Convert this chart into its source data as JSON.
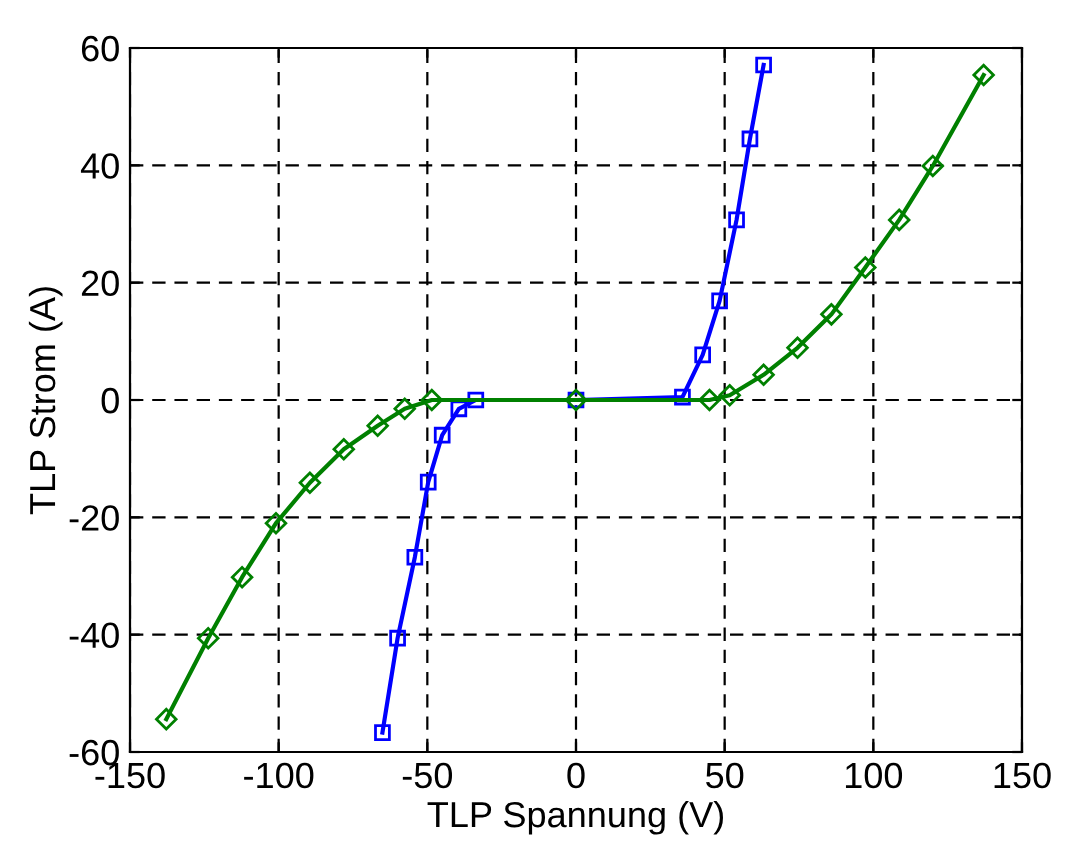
{
  "chart_data": {
    "type": "line",
    "xlabel": "TLP Spannung (V)",
    "ylabel": "TLP Strom (A)",
    "xlim": [
      -150,
      150
    ],
    "ylim": [
      -60,
      60
    ],
    "xticks": [
      -150,
      -100,
      -50,
      0,
      50,
      100,
      150
    ],
    "yticks": [
      -60,
      -40,
      -20,
      0,
      20,
      40,
      60
    ],
    "grid": true,
    "line_style": "solid",
    "series": [
      {
        "color": "#0000ff",
        "marker": "square",
        "x": [
          -65.1,
          -60,
          -54.2,
          -49.7,
          -45,
          -39.4,
          -33.7,
          0,
          35.8,
          42.6,
          48.3,
          54,
          58.5,
          63.1
        ],
        "values": [
          -56.7,
          -40.6,
          -26.8,
          -14,
          -6,
          -1.5,
          0,
          0,
          0.5,
          7.7,
          16.9,
          30.7,
          44.5,
          57.1
        ]
      },
      {
        "color": "#008000",
        "marker": "diamond",
        "x": [
          -137.8,
          -123.7,
          -112.3,
          -100.9,
          -89.5,
          -78.1,
          -66.7,
          -57.6,
          -48.5,
          0,
          44.9,
          51.7,
          63.1,
          74.5,
          85.9,
          97.3,
          108.7,
          120,
          137.1
        ],
        "values": [
          -54.4,
          -40.6,
          -30.2,
          -21,
          -14.1,
          -8.4,
          -4.4,
          -1.5,
          0,
          0,
          0,
          0.8,
          4.3,
          8.9,
          14.6,
          22.6,
          30.7,
          39.9,
          55.4
        ]
      }
    ]
  }
}
